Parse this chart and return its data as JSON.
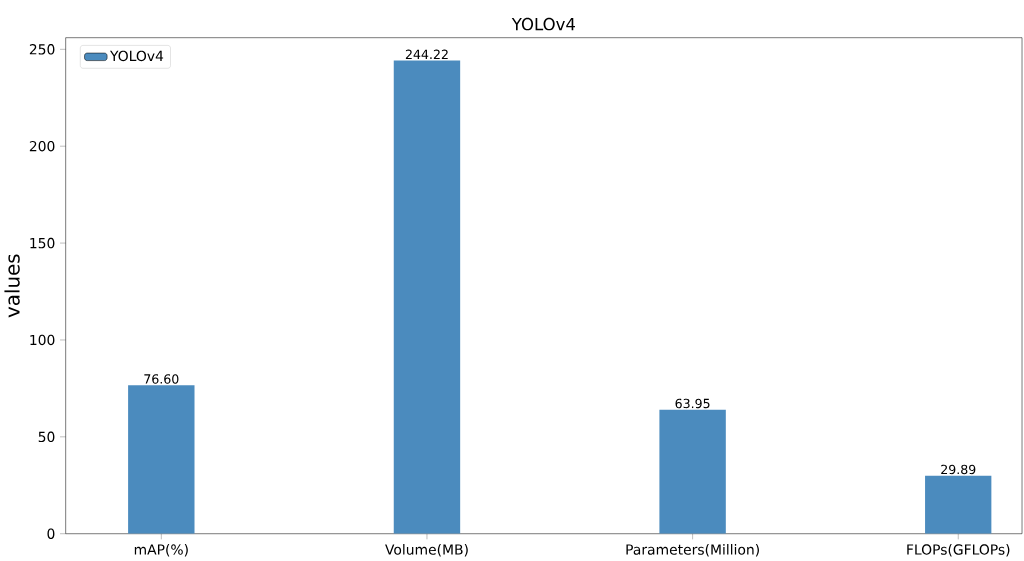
{
  "chart_data": {
    "type": "bar",
    "title": "YOLOv4",
    "ylabel": "values",
    "categories": [
      "mAP(%)",
      "Volume(MB)",
      "Parameters(Million)",
      "FLOPs(GFLOPs)"
    ],
    "series": [
      {
        "name": "YOLOv4",
        "color": "#4b8bbe",
        "values": [
          76.6,
          244.22,
          63.95,
          29.89
        ],
        "value_labels": [
          "76.60",
          "244.22",
          "63.95",
          "29.89"
        ]
      }
    ],
    "ylim": [
      0,
      256
    ],
    "yticks": [
      0,
      50,
      100,
      150,
      200,
      250
    ],
    "grid": false,
    "legend": "top left"
  }
}
